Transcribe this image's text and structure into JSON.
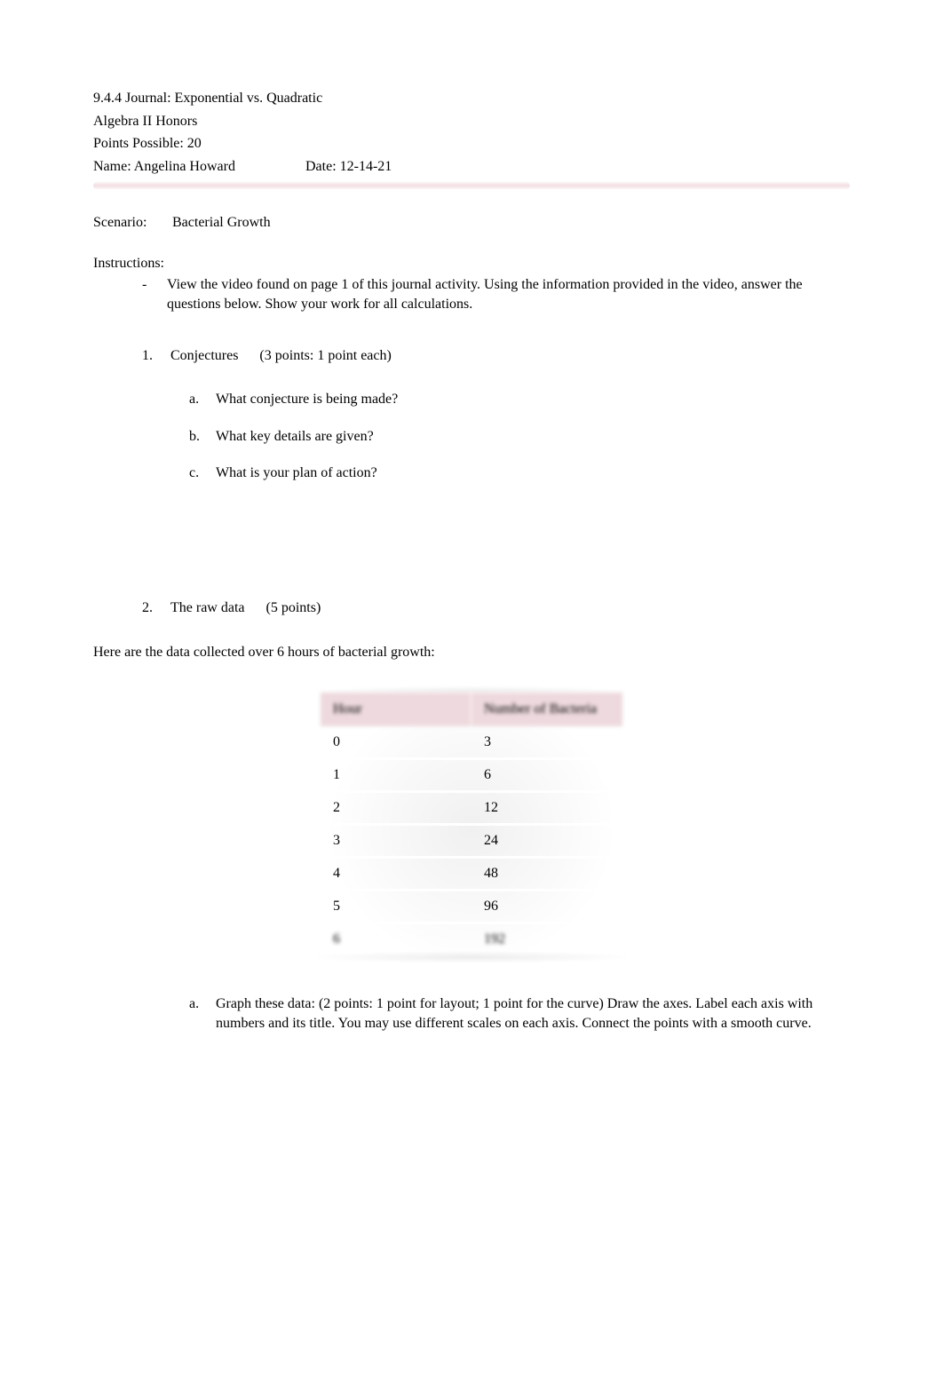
{
  "colors": {
    "page_bg": "#ffffff",
    "text": "#000000",
    "pink_bar": "#f3e0e4",
    "table_header_bg": "#eedade",
    "table_row_bg": "#ffffff"
  },
  "fonts": {
    "body_family": "Times New Roman",
    "body_size_pt": 12
  },
  "header": {
    "title": "9.4.4 Journal: Exponential vs. Quadratic",
    "course": "Algebra II Honors",
    "points_line": "Points Possible: 20",
    "name_label": "Name: Angelina Howard",
    "date_label": "Date: 12-14-21"
  },
  "scenario": {
    "label": "Scenario:",
    "value": "Bacterial Growth"
  },
  "instructions": {
    "label": "Instructions:",
    "bullet": "View the video found on page 1 of this journal activity. Using the information provided in the video, answer the questions below. Show your work for all calculations."
  },
  "q1": {
    "number": "1.",
    "title": "Conjectures",
    "points": "(3 points: 1 point each)",
    "a": {
      "letter": "a.",
      "text": "What conjecture is being made?"
    },
    "b": {
      "letter": "b.",
      "text": "What key details are given?"
    },
    "c": {
      "letter": "c.",
      "text": "What is your plan of action?"
    }
  },
  "q2": {
    "number": "2.",
    "title": "The raw data",
    "points": "(5 points)"
  },
  "data_intro": "Here are the data collected over 6 hours of bacterial growth:",
  "table": {
    "columns": [
      "Hour",
      "Number of Bacteria"
    ],
    "col_widths_pct": [
      50,
      50
    ],
    "header_bg": "#eedade",
    "header_fontsize_pt": 12,
    "cell_fontsize_pt": 12,
    "rows": [
      [
        "0",
        "3"
      ],
      [
        "1",
        "6"
      ],
      [
        "2",
        "12"
      ],
      [
        "3",
        "24"
      ],
      [
        "4",
        "48"
      ],
      [
        "5",
        "96"
      ],
      [
        "6",
        "192"
      ]
    ]
  },
  "q2a": {
    "letter": "a.",
    "text": "Graph these data: (2 points: 1 point for layout; 1 point for the curve) Draw the axes. Label each axis with numbers and its title. You may use different scales on each axis. Connect the points with a smooth curve."
  }
}
